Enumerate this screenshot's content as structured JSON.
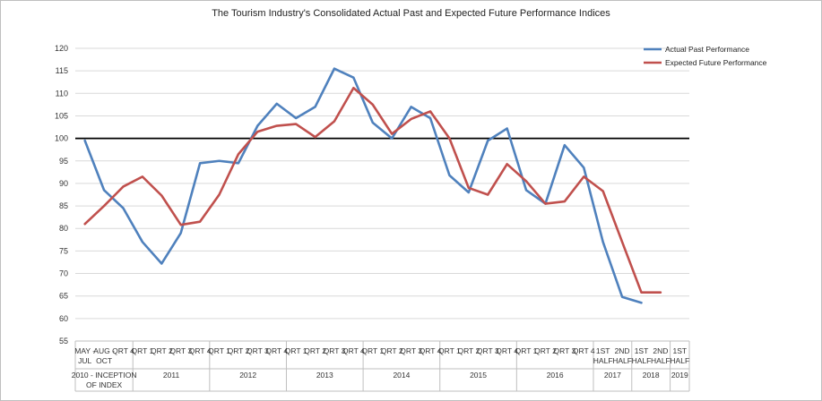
{
  "chart_data": {
    "type": "line",
    "title": "The Tourism Industry's Consolidated Actual Past and Expected Future Performance Indices",
    "xlabel": "",
    "ylabel": "",
    "ylim": [
      55,
      120
    ],
    "yticks": [
      55,
      60,
      65,
      70,
      75,
      80,
      85,
      90,
      95,
      100,
      105,
      110,
      115,
      120
    ],
    "reference_line": 100,
    "grid": true,
    "legend_position": "top-right",
    "categories": [
      {
        "line1": "MAY -",
        "line2": "JUL"
      },
      {
        "line1": "AUG -",
        "line2": "OCT"
      },
      {
        "line1": "QRT 4",
        "line2": ""
      },
      {
        "line1": "QRT 1",
        "line2": ""
      },
      {
        "line1": "QRT 2",
        "line2": ""
      },
      {
        "line1": "QRT 3",
        "line2": ""
      },
      {
        "line1": "QRT 4",
        "line2": ""
      },
      {
        "line1": "QRT 1",
        "line2": ""
      },
      {
        "line1": "QRT 2",
        "line2": ""
      },
      {
        "line1": "QRT 3",
        "line2": ""
      },
      {
        "line1": "QRT 4",
        "line2": ""
      },
      {
        "line1": "QRT 1",
        "line2": ""
      },
      {
        "line1": "QRT 2",
        "line2": ""
      },
      {
        "line1": "QRT 3",
        "line2": ""
      },
      {
        "line1": "QRT 4",
        "line2": ""
      },
      {
        "line1": "QRT 1",
        "line2": ""
      },
      {
        "line1": "QRT 2",
        "line2": ""
      },
      {
        "line1": "QRT 3",
        "line2": ""
      },
      {
        "line1": "QRT 4",
        "line2": ""
      },
      {
        "line1": "QRT 1",
        "line2": ""
      },
      {
        "line1": "QRT 2",
        "line2": ""
      },
      {
        "line1": "QRT 3",
        "line2": ""
      },
      {
        "line1": "QRT 4",
        "line2": ""
      },
      {
        "line1": "QRT 1",
        "line2": ""
      },
      {
        "line1": "QRT 2",
        "line2": ""
      },
      {
        "line1": "QRT 3",
        "line2": ""
      },
      {
        "line1": "QRT 4",
        "line2": ""
      },
      {
        "line1": "1ST",
        "line2": "HALF"
      },
      {
        "line1": "2ND",
        "line2": "HALF"
      },
      {
        "line1": "1ST",
        "line2": "HALF"
      },
      {
        "line1": "2ND",
        "line2": "HALF"
      },
      {
        "line1": "1ST",
        "line2": "HALF"
      }
    ],
    "groups": [
      {
        "label": [
          "2010 - INCEPTION",
          "OF INDEX"
        ],
        "start": 0,
        "count": 3
      },
      {
        "label": [
          "2011"
        ],
        "start": 3,
        "count": 4
      },
      {
        "label": [
          "2012"
        ],
        "start": 7,
        "count": 4
      },
      {
        "label": [
          "2013"
        ],
        "start": 11,
        "count": 4
      },
      {
        "label": [
          "2014"
        ],
        "start": 15,
        "count": 4
      },
      {
        "label": [
          "2015"
        ],
        "start": 19,
        "count": 4
      },
      {
        "label": [
          "2016"
        ],
        "start": 23,
        "count": 4
      },
      {
        "label": [
          "2017"
        ],
        "start": 27,
        "count": 2
      },
      {
        "label": [
          "2018"
        ],
        "start": 29,
        "count": 2
      },
      {
        "label": [
          "2019"
        ],
        "start": 31,
        "count": 1
      }
    ],
    "series": [
      {
        "name": "Actual Past Performance",
        "color": "#4f81bd",
        "values": [
          99.5,
          88.5,
          84.5,
          77,
          72.2,
          79,
          94.5,
          95,
          94.5,
          102.8,
          107.7,
          104.5,
          107,
          115.5,
          113.5,
          103.5,
          100,
          107,
          104.5,
          91.8,
          88,
          99.5,
          102.2,
          88.5,
          85.5,
          98.5,
          93.5,
          77,
          64.8,
          63.5,
          null,
          null
        ]
      },
      {
        "name": "Expected Future Performance",
        "color": "#c0504d",
        "values": [
          81,
          85,
          89.3,
          91.5,
          87.3,
          80.8,
          81.5,
          87.5,
          96.5,
          101.5,
          102.8,
          103.2,
          100.3,
          103.8,
          111.2,
          107.5,
          101,
          104.3,
          106,
          100,
          89,
          87.5,
          94.3,
          90.5,
          85.5,
          86,
          91.5,
          88.3,
          77,
          65.8,
          65.8,
          null
        ]
      }
    ]
  }
}
